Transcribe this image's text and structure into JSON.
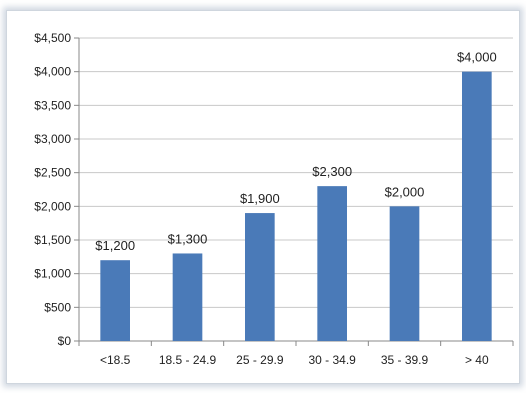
{
  "chart_data": {
    "type": "bar",
    "categories": [
      "<18.5",
      "18.5 - 24.9",
      "25 - 29.9",
      "30 - 34.9",
      "35 - 39.9",
      "> 40"
    ],
    "values": [
      1200,
      1300,
      1900,
      2300,
      2000,
      4000
    ],
    "data_labels": [
      "$1,200",
      "$1,300",
      "$1,900",
      "$2,300",
      "$2,000",
      "$4,000"
    ],
    "y_ticks": [
      "$0",
      "$500",
      "$1,000",
      "$1,500",
      "$2,000",
      "$2,500",
      "$3,000",
      "$3,500",
      "$4,000",
      "$4,500"
    ],
    "ylim": [
      0,
      4500
    ],
    "y_tick_step": 500,
    "grid": true,
    "bar_color": "#4a7ab8",
    "grid_color": "#c8c8c8"
  }
}
